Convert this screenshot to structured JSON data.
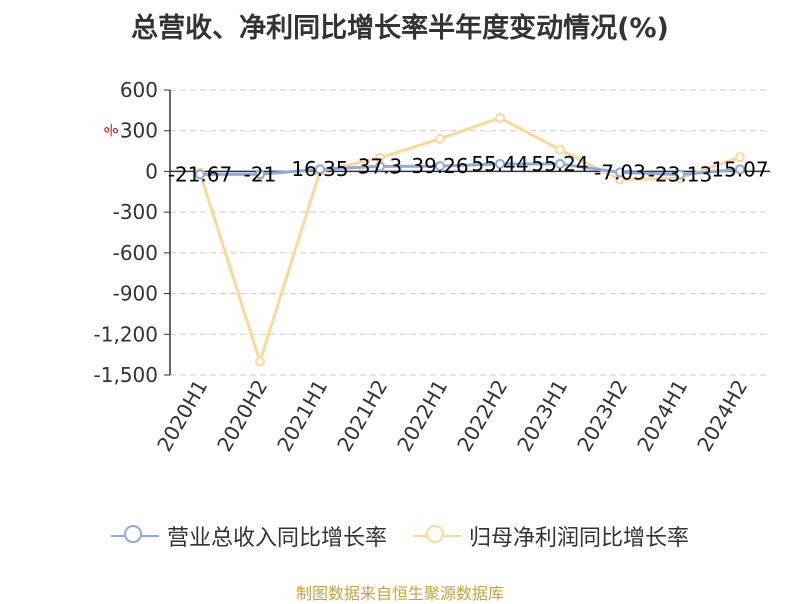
{
  "title": "总营收、净利同比增长率半年度变动情况(%)",
  "source": "制图数据来自恒生聚源数据库",
  "colors": {
    "revenue": "#8ea9dc",
    "profit": "#fbd89a",
    "grid": "#cccccc",
    "axis": "#333333"
  },
  "chart_data": {
    "type": "line",
    "title": "总营收、净利同比增长率半年度变动情况(%)",
    "unit": "%",
    "categories": [
      "2020H1",
      "2020H2",
      "2021H1",
      "2021H2",
      "2022H1",
      "2022H2",
      "2023H1",
      "2023H2",
      "2024H1",
      "2024H2"
    ],
    "ylim": [
      -1500,
      600
    ],
    "yticks": [
      600,
      300,
      0,
      -300,
      -600,
      -900,
      -1200,
      -1500
    ],
    "ytick_labels": [
      "600",
      "300",
      "0",
      "-300",
      "-600",
      "-900",
      "-1,200",
      "-1,500"
    ],
    "grid": true,
    "legend_position": "bottom",
    "series": [
      {
        "name": "营业总收入同比增长率",
        "values": [
          -21.67,
          -21,
          16.35,
          37.3,
          39.26,
          55.44,
          55.24,
          -7.03,
          -23.13,
          15.07
        ],
        "labels": [
          "-21.67",
          "-21",
          "16.35",
          "37.3",
          "39.26",
          "55.44",
          "55.24",
          "-7.03",
          "-23.13",
          "15.07"
        ]
      },
      {
        "name": "归母净利润同比增长率",
        "values": [
          -10,
          -1400,
          0,
          100,
          240,
          395,
          160,
          -60,
          -50,
          105
        ]
      }
    ]
  }
}
